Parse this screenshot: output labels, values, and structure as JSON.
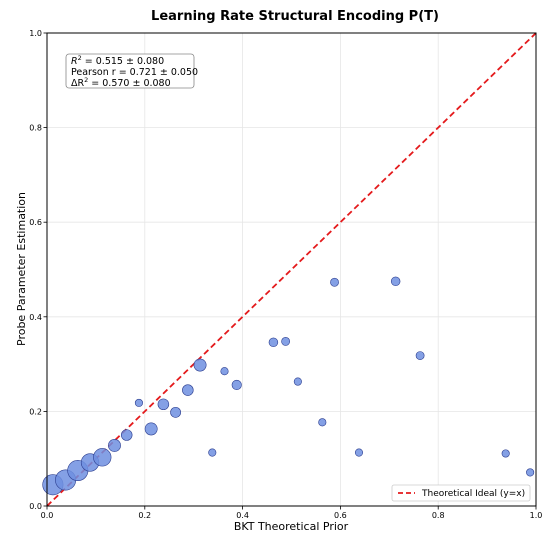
{
  "chart_data": {
    "type": "scatter",
    "title": "Learning Rate Structural Encoding P(T)",
    "xlabel": "BKT Theoretical Prior",
    "ylabel": "Probe Parameter Estimation",
    "xlim": [
      0,
      1
    ],
    "ylim": [
      0,
      1
    ],
    "x_ticks": [
      "0.0",
      "0.2",
      "0.4",
      "0.6",
      "0.8",
      "1.0"
    ],
    "y_ticks": [
      "0.0",
      "0.2",
      "0.4",
      "0.6",
      "0.8",
      "1.0"
    ],
    "grid": true,
    "legend_position": "bottom-right",
    "point_color": "#6f8fe0",
    "point_edge_color": "#2b3d8f",
    "reference_line": {
      "label": "Theoretical Ideal (y=x)",
      "color": "#e41a1c",
      "style": "dashed",
      "x": [
        0,
        1
      ],
      "y": [
        0,
        1
      ]
    },
    "annotations": [
      {
        "label": "R",
        "sup": "2",
        "value": " = 0.515 ± 0.080"
      },
      {
        "label": "Pearson r",
        "sup": "",
        "value": " = 0.721 ± 0.050"
      },
      {
        "label": "ΔR",
        "sup": "2",
        "value": " = 0.570 ± 0.080"
      }
    ],
    "points": [
      {
        "x": 0.012,
        "y": 0.045,
        "size": 3.0
      },
      {
        "x": 0.038,
        "y": 0.055,
        "size": 3.0
      },
      {
        "x": 0.063,
        "y": 0.075,
        "size": 3.0
      },
      {
        "x": 0.088,
        "y": 0.092,
        "size": 2.6
      },
      {
        "x": 0.113,
        "y": 0.103,
        "size": 2.6
      },
      {
        "x": 0.138,
        "y": 0.128,
        "size": 1.8
      },
      {
        "x": 0.163,
        "y": 0.15,
        "size": 1.6
      },
      {
        "x": 0.188,
        "y": 0.218,
        "size": 1.1
      },
      {
        "x": 0.213,
        "y": 0.163,
        "size": 1.8
      },
      {
        "x": 0.238,
        "y": 0.215,
        "size": 1.6
      },
      {
        "x": 0.263,
        "y": 0.198,
        "size": 1.5
      },
      {
        "x": 0.288,
        "y": 0.245,
        "size": 1.6
      },
      {
        "x": 0.313,
        "y": 0.298,
        "size": 1.8
      },
      {
        "x": 0.338,
        "y": 0.113,
        "size": 1.1
      },
      {
        "x": 0.363,
        "y": 0.285,
        "size": 1.1
      },
      {
        "x": 0.388,
        "y": 0.256,
        "size": 1.4
      },
      {
        "x": 0.463,
        "y": 0.346,
        "size": 1.3
      },
      {
        "x": 0.488,
        "y": 0.348,
        "size": 1.2
      },
      {
        "x": 0.513,
        "y": 0.263,
        "size": 1.1
      },
      {
        "x": 0.563,
        "y": 0.177,
        "size": 1.1
      },
      {
        "x": 0.588,
        "y": 0.473,
        "size": 1.2
      },
      {
        "x": 0.638,
        "y": 0.113,
        "size": 1.1
      },
      {
        "x": 0.713,
        "y": 0.475,
        "size": 1.3
      },
      {
        "x": 0.763,
        "y": 0.318,
        "size": 1.2
      },
      {
        "x": 0.938,
        "y": 0.111,
        "size": 1.1
      },
      {
        "x": 0.988,
        "y": 0.071,
        "size": 1.1
      }
    ]
  }
}
